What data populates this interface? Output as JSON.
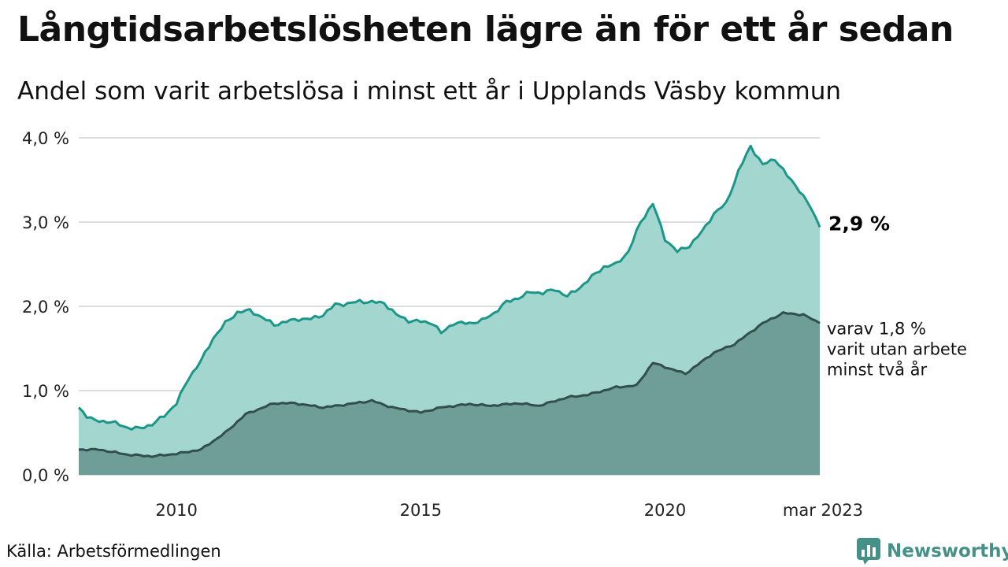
{
  "header": {
    "title": "Långtidsarbetslösheten lägre än för ett år sedan",
    "subtitle": "Andel som varit arbetslösa i minst ett år i Upplands Väsby kommun"
  },
  "footer": {
    "source": "Källa: Arbetsförmedlingen",
    "brand": "Newsworthy"
  },
  "colors": {
    "series1_fill": "#a2d6cf",
    "series1_line": "#1a9788",
    "series2_fill": "#6f9e98",
    "series2_line": "#324f4b",
    "grid": "#dddddd",
    "brand": "#45918a"
  },
  "chart_data": {
    "type": "area",
    "x_start": "2008-01",
    "x_end": "2023-03",
    "ylim": [
      0,
      4
    ],
    "y_ticks": [
      {
        "value": 0,
        "label": "0,0 %"
      },
      {
        "value": 1,
        "label": "1,0 %"
      },
      {
        "value": 2,
        "label": "2,0 %"
      },
      {
        "value": 3,
        "label": "3,0 %"
      },
      {
        "value": 4,
        "label": "4,0 %"
      }
    ],
    "x_ticks": [
      {
        "value": "2010-01",
        "label": "2010"
      },
      {
        "value": "2015-01",
        "label": "2015"
      },
      {
        "value": "2020-01",
        "label": "2020"
      },
      {
        "value": "2023-03",
        "label": "mar 2023"
      }
    ],
    "grid": true,
    "series": [
      {
        "key": "min1",
        "anchors": [
          [
            "2008-01",
            0.8
          ],
          [
            "2008-03",
            0.7
          ],
          [
            "2008-05",
            0.64
          ],
          [
            "2008-09",
            0.63
          ],
          [
            "2009-01",
            0.56
          ],
          [
            "2009-04",
            0.55
          ],
          [
            "2009-07",
            0.6
          ],
          [
            "2009-10",
            0.7
          ],
          [
            "2010-01",
            0.85
          ],
          [
            "2010-04",
            1.15
          ],
          [
            "2010-07",
            1.35
          ],
          [
            "2010-10",
            1.62
          ],
          [
            "2011-01",
            1.8
          ],
          [
            "2011-04",
            1.93
          ],
          [
            "2011-07",
            1.95
          ],
          [
            "2011-10",
            1.87
          ],
          [
            "2012-01",
            1.78
          ],
          [
            "2012-04",
            1.82
          ],
          [
            "2012-07",
            1.85
          ],
          [
            "2012-10",
            1.85
          ],
          [
            "2013-01",
            1.9
          ],
          [
            "2013-04",
            2.02
          ],
          [
            "2013-07",
            2.03
          ],
          [
            "2013-10",
            2.06
          ],
          [
            "2014-01",
            2.05
          ],
          [
            "2014-04",
            2.04
          ],
          [
            "2014-07",
            1.9
          ],
          [
            "2014-10",
            1.83
          ],
          [
            "2015-01",
            1.82
          ],
          [
            "2015-04",
            1.8
          ],
          [
            "2015-06",
            1.68
          ],
          [
            "2015-09",
            1.8
          ],
          [
            "2016-01",
            1.8
          ],
          [
            "2016-04",
            1.83
          ],
          [
            "2016-07",
            1.92
          ],
          [
            "2016-10",
            2.05
          ],
          [
            "2017-01",
            2.1
          ],
          [
            "2017-04",
            2.17
          ],
          [
            "2017-07",
            2.16
          ],
          [
            "2017-10",
            2.2
          ],
          [
            "2018-01",
            2.12
          ],
          [
            "2018-04",
            2.22
          ],
          [
            "2018-07",
            2.35
          ],
          [
            "2018-10",
            2.47
          ],
          [
            "2019-01",
            2.5
          ],
          [
            "2019-04",
            2.65
          ],
          [
            "2019-07",
            3.0
          ],
          [
            "2019-10",
            3.22
          ],
          [
            "2020-01",
            2.8
          ],
          [
            "2020-04",
            2.65
          ],
          [
            "2020-07",
            2.72
          ],
          [
            "2020-10",
            2.88
          ],
          [
            "2021-01",
            3.1
          ],
          [
            "2021-04",
            3.22
          ],
          [
            "2021-07",
            3.6
          ],
          [
            "2021-10",
            3.9
          ],
          [
            "2022-01",
            3.68
          ],
          [
            "2022-04",
            3.75
          ],
          [
            "2022-07",
            3.55
          ],
          [
            "2022-10",
            3.38
          ],
          [
            "2023-01",
            3.15
          ],
          [
            "2023-03",
            2.94
          ]
        ]
      },
      {
        "key": "min2",
        "anchors": [
          [
            "2008-01",
            0.3
          ],
          [
            "2008-06",
            0.3
          ],
          [
            "2009-01",
            0.24
          ],
          [
            "2009-07",
            0.22
          ],
          [
            "2010-01",
            0.25
          ],
          [
            "2010-07",
            0.3
          ],
          [
            "2011-01",
            0.5
          ],
          [
            "2011-06",
            0.72
          ],
          [
            "2012-01",
            0.85
          ],
          [
            "2012-06",
            0.85
          ],
          [
            "2013-01",
            0.8
          ],
          [
            "2013-06",
            0.83
          ],
          [
            "2014-01",
            0.88
          ],
          [
            "2014-06",
            0.8
          ],
          [
            "2015-01",
            0.74
          ],
          [
            "2015-06",
            0.8
          ],
          [
            "2016-01",
            0.84
          ],
          [
            "2016-06",
            0.82
          ],
          [
            "2017-01",
            0.85
          ],
          [
            "2017-06",
            0.82
          ],
          [
            "2018-01",
            0.92
          ],
          [
            "2018-06",
            0.95
          ],
          [
            "2019-01",
            1.04
          ],
          [
            "2019-06",
            1.06
          ],
          [
            "2019-10",
            1.33
          ],
          [
            "2020-01",
            1.28
          ],
          [
            "2020-06",
            1.2
          ],
          [
            "2021-01",
            1.45
          ],
          [
            "2021-06",
            1.55
          ],
          [
            "2022-01",
            1.8
          ],
          [
            "2022-06",
            1.92
          ],
          [
            "2022-11",
            1.9
          ],
          [
            "2023-03",
            1.8
          ]
        ]
      }
    ],
    "labels": {
      "end_label": "2,9 %",
      "annotation": [
        "varav 1,8 %",
        "varit utan arbete",
        "minst två år"
      ]
    }
  }
}
